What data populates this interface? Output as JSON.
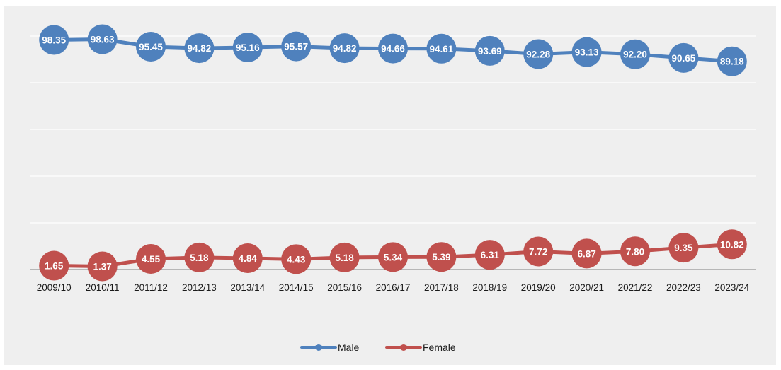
{
  "chart_data": {
    "type": "line",
    "categories": [
      "2009/10",
      "2010/11",
      "2011/12",
      "2012/13",
      "2013/14",
      "2014/15",
      "2015/16",
      "2016/17",
      "2017/18",
      "2018/19",
      "2019/20",
      "2020/21",
      "2021/22",
      "2022/23",
      "2023/24"
    ],
    "series": [
      {
        "name": "Male",
        "color": "#4f81bd",
        "values": [
          98.35,
          98.63,
          95.45,
          94.82,
          95.16,
          95.57,
          94.82,
          94.66,
          94.61,
          93.69,
          92.28,
          93.13,
          92.2,
          90.65,
          89.18
        ],
        "labels": [
          "98.35",
          "98.63",
          "95.45",
          "94.82",
          "95.16",
          "95.57",
          "94.82",
          "94.66",
          "94.61",
          "93.69",
          "92.28",
          "93.13",
          "92.20",
          "90.65",
          "89.18"
        ]
      },
      {
        "name": "Female",
        "color": "#c0504d",
        "values": [
          1.65,
          1.37,
          4.55,
          5.18,
          4.84,
          4.43,
          5.18,
          5.34,
          5.39,
          6.31,
          7.72,
          6.87,
          7.8,
          9.35,
          10.82
        ],
        "labels": [
          "1.65",
          "1.37",
          "4.55",
          "5.18",
          "4.84",
          "4.43",
          "5.18",
          "5.34",
          "5.39",
          "6.31",
          "7.72",
          "6.87",
          "7.80",
          "9.35",
          "10.82"
        ]
      }
    ],
    "ylim": [
      0,
      100
    ],
    "ytick_values": [
      0,
      20,
      40,
      60,
      80,
      100
    ],
    "y_tick_labels_shown": false,
    "grid": true,
    "legend_position": "bottom-center",
    "title": "",
    "xlabel": "",
    "ylabel": ""
  }
}
